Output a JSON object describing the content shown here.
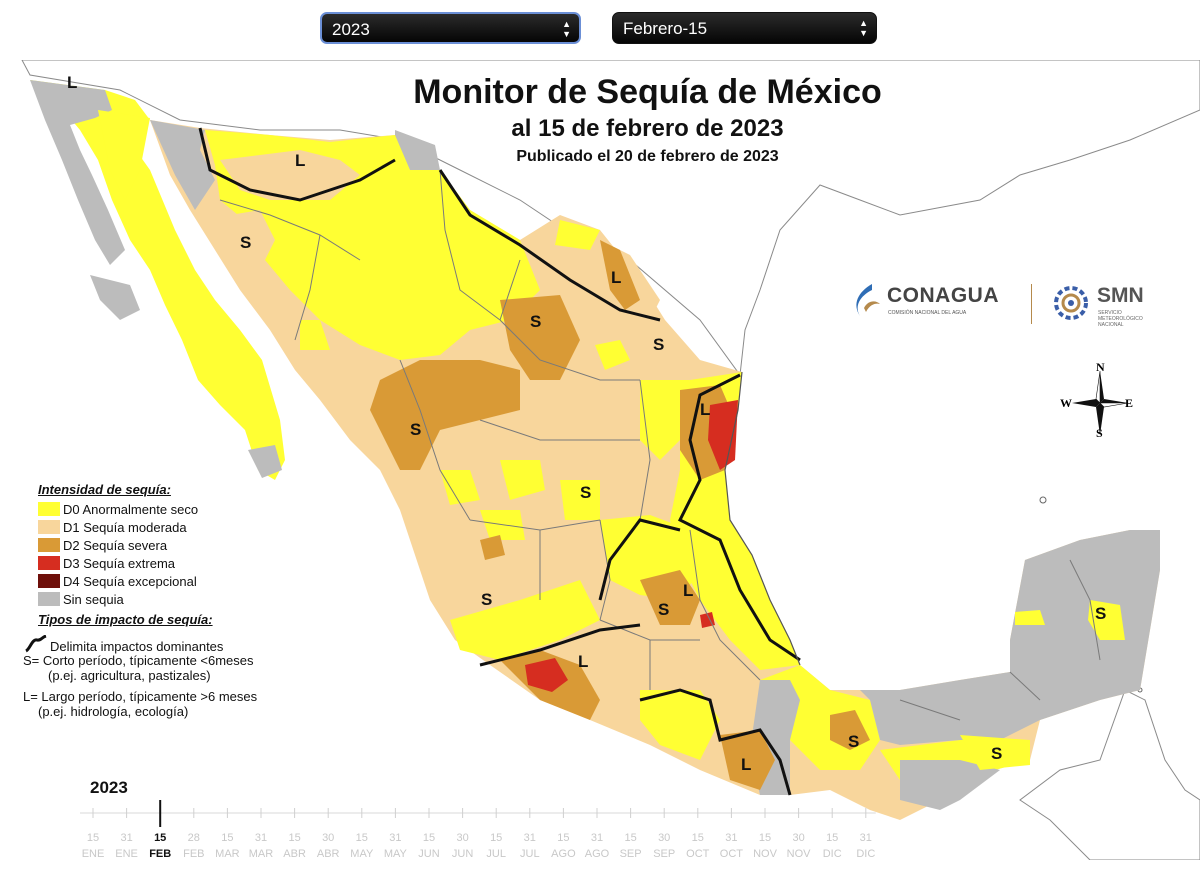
{
  "controls": {
    "year_select": "2023",
    "date_select": "Febrero-15"
  },
  "header": {
    "title": "Monitor de Sequía de México",
    "subtitle": "al 15 de febrero de 2023",
    "published": "Publicado el 20 de febrero de 2023"
  },
  "logos": {
    "conagua": "CONAGUA",
    "conagua_sub": "COMISIÓN NACIONAL DEL AGUA",
    "smn": "SMN",
    "smn_sub_1": "SERVICIO",
    "smn_sub_2": "METEOROLÓGICO",
    "smn_sub_3": "NACIONAL"
  },
  "compass": {
    "n": "N",
    "s": "S",
    "e": "E",
    "w": "W"
  },
  "legend": {
    "intensity_header": "Intensidad de sequía:",
    "levels": [
      {
        "label": "D0 Anormalmente seco",
        "color": "#ffff33"
      },
      {
        "label": "D1 Sequía moderada",
        "color": "#f8d69c"
      },
      {
        "label": "D2 Sequía severa",
        "color": "#d99a36"
      },
      {
        "label": "D3 Sequía extrema",
        "color": "#d62d20"
      },
      {
        "label": "D4 Sequía excepcional",
        "color": "#6e0f0a"
      },
      {
        "label": "Sin sequia",
        "color": "#bcbcbc"
      }
    ],
    "impact_header": "Tipos de impacto de sequía:",
    "impact_boundary": "Delimita impactos dominantes",
    "short_1": "S= Corto período, típicamente <6meses",
    "short_2": "(p.ej. agricultura, pastizales)",
    "long_1": "L= Largo período, típicamente >6 meses",
    "long_2": "(p.ej. hidrología, ecología)"
  },
  "map_labels": {
    "l_labels": [
      "L",
      "L",
      "L",
      "L",
      "L",
      "L",
      "L"
    ],
    "s_labels": [
      "S",
      "S",
      "S",
      "S",
      "S",
      "S",
      "S",
      "S",
      "S",
      "S"
    ]
  },
  "timeline": {
    "year": "2023",
    "selected_index": 2,
    "days": [
      "15",
      "31",
      "15",
      "28",
      "15",
      "31",
      "15",
      "30",
      "15",
      "31",
      "15",
      "30",
      "15",
      "31",
      "15",
      "31",
      "15",
      "30",
      "15",
      "31",
      "15",
      "30",
      "15",
      "31"
    ],
    "months": [
      "ENE",
      "ENE",
      "FEB",
      "FEB",
      "MAR",
      "MAR",
      "ABR",
      "ABR",
      "MAY",
      "MAY",
      "JUN",
      "JUN",
      "JUL",
      "JUL",
      "AGO",
      "AGO",
      "SEP",
      "SEP",
      "OCT",
      "OCT",
      "NOV",
      "NOV",
      "DIC",
      "DIC"
    ]
  }
}
